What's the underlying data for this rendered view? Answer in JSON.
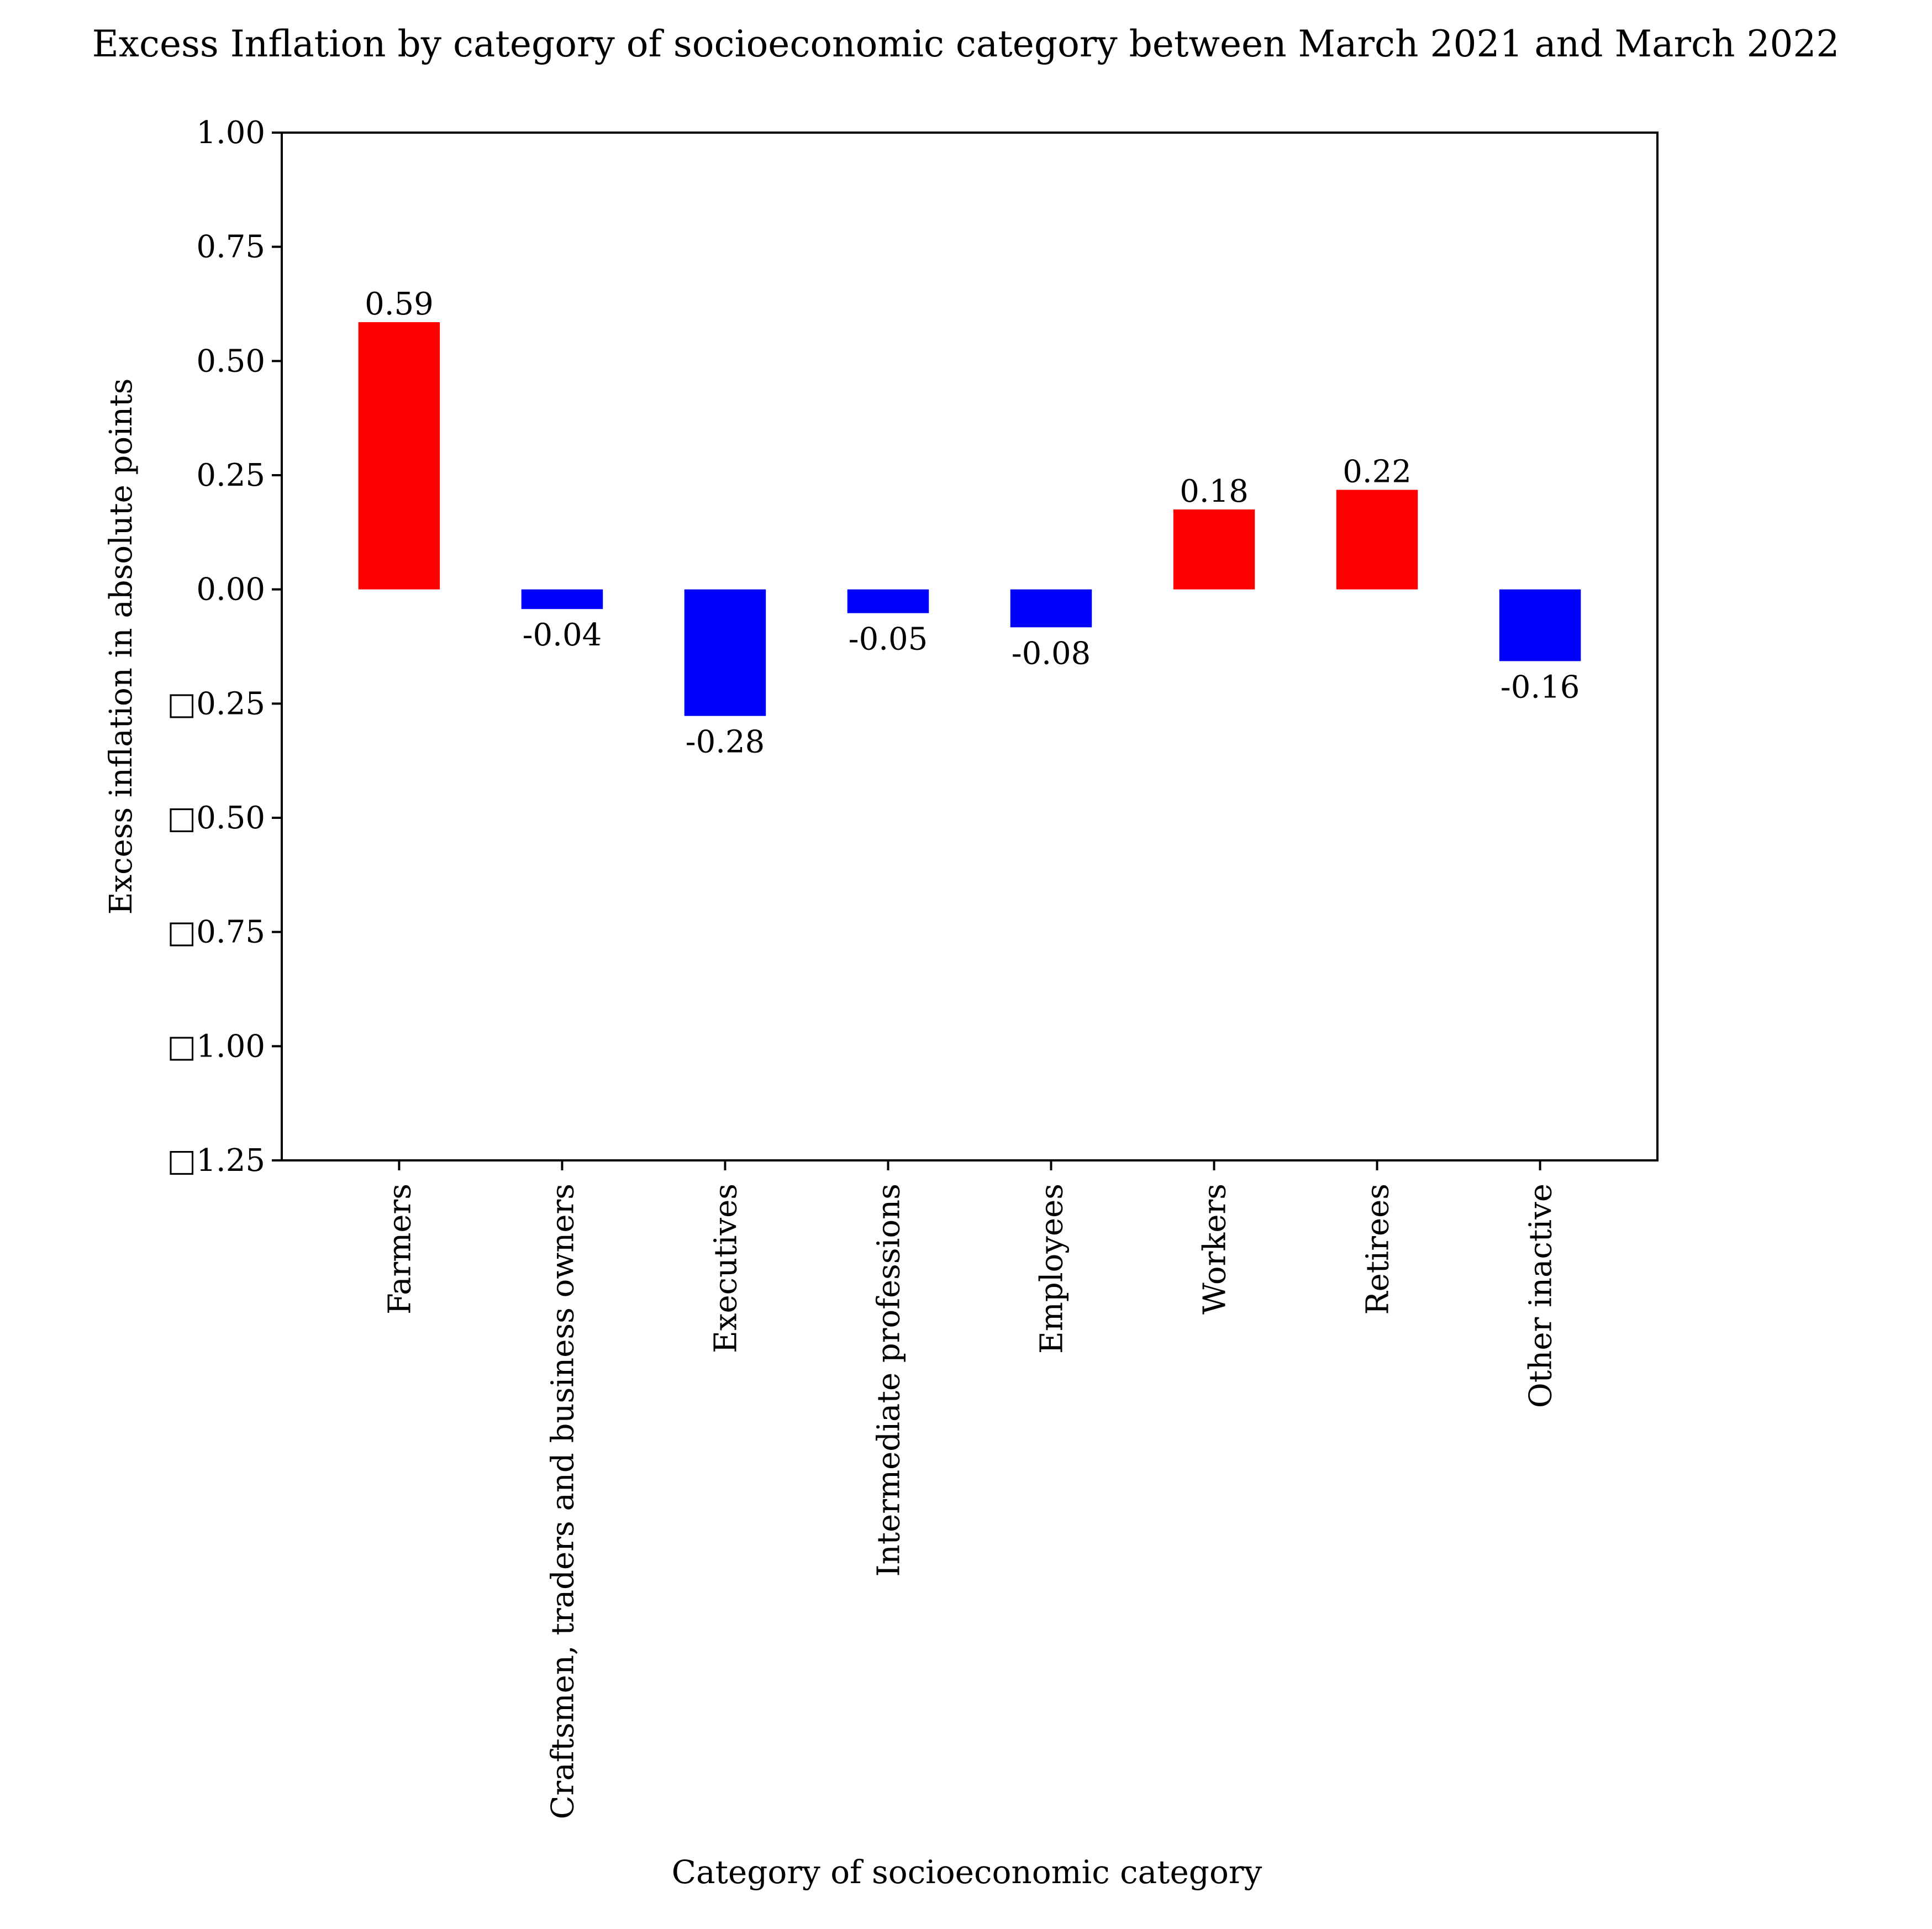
{
  "chart_data": {
    "type": "bar",
    "title": "Excess Inflation by category of socioeconomic category between March 2021 and March 2022",
    "xlabel": "Category of socioeconomic category",
    "ylabel": "Excess inflation in absolute points",
    "ylim": [
      -1.25,
      1.0
    ],
    "yticks": [
      1.0,
      0.75,
      0.5,
      0.25,
      0.0,
      -0.25,
      -0.5,
      -0.75,
      -1.0,
      -1.25
    ],
    "ytick_labels": [
      "1.00",
      "0.75",
      "0.50",
      "0.25",
      "0.00",
      "□0.25",
      "□0.50",
      "□0.75",
      "□1.00",
      "□1.25"
    ],
    "categories": [
      "Farmers",
      "Craftsmen, traders and business owners",
      "Executives",
      "Intermediate professions",
      "Employees",
      "Workers",
      "Retirees",
      "Other inactive"
    ],
    "values": [
      0.585,
      -0.043,
      -0.277,
      -0.052,
      -0.083,
      0.175,
      0.218,
      -0.157
    ],
    "value_labels": [
      "0.59",
      "-0.04",
      "-0.28",
      "-0.05",
      "-0.08",
      "0.18",
      "0.22",
      "-0.16"
    ],
    "colors": {
      "positive": "#ff0000",
      "negative": "#0000ff",
      "axis": "#000000"
    },
    "grid": false,
    "legend": "none"
  }
}
